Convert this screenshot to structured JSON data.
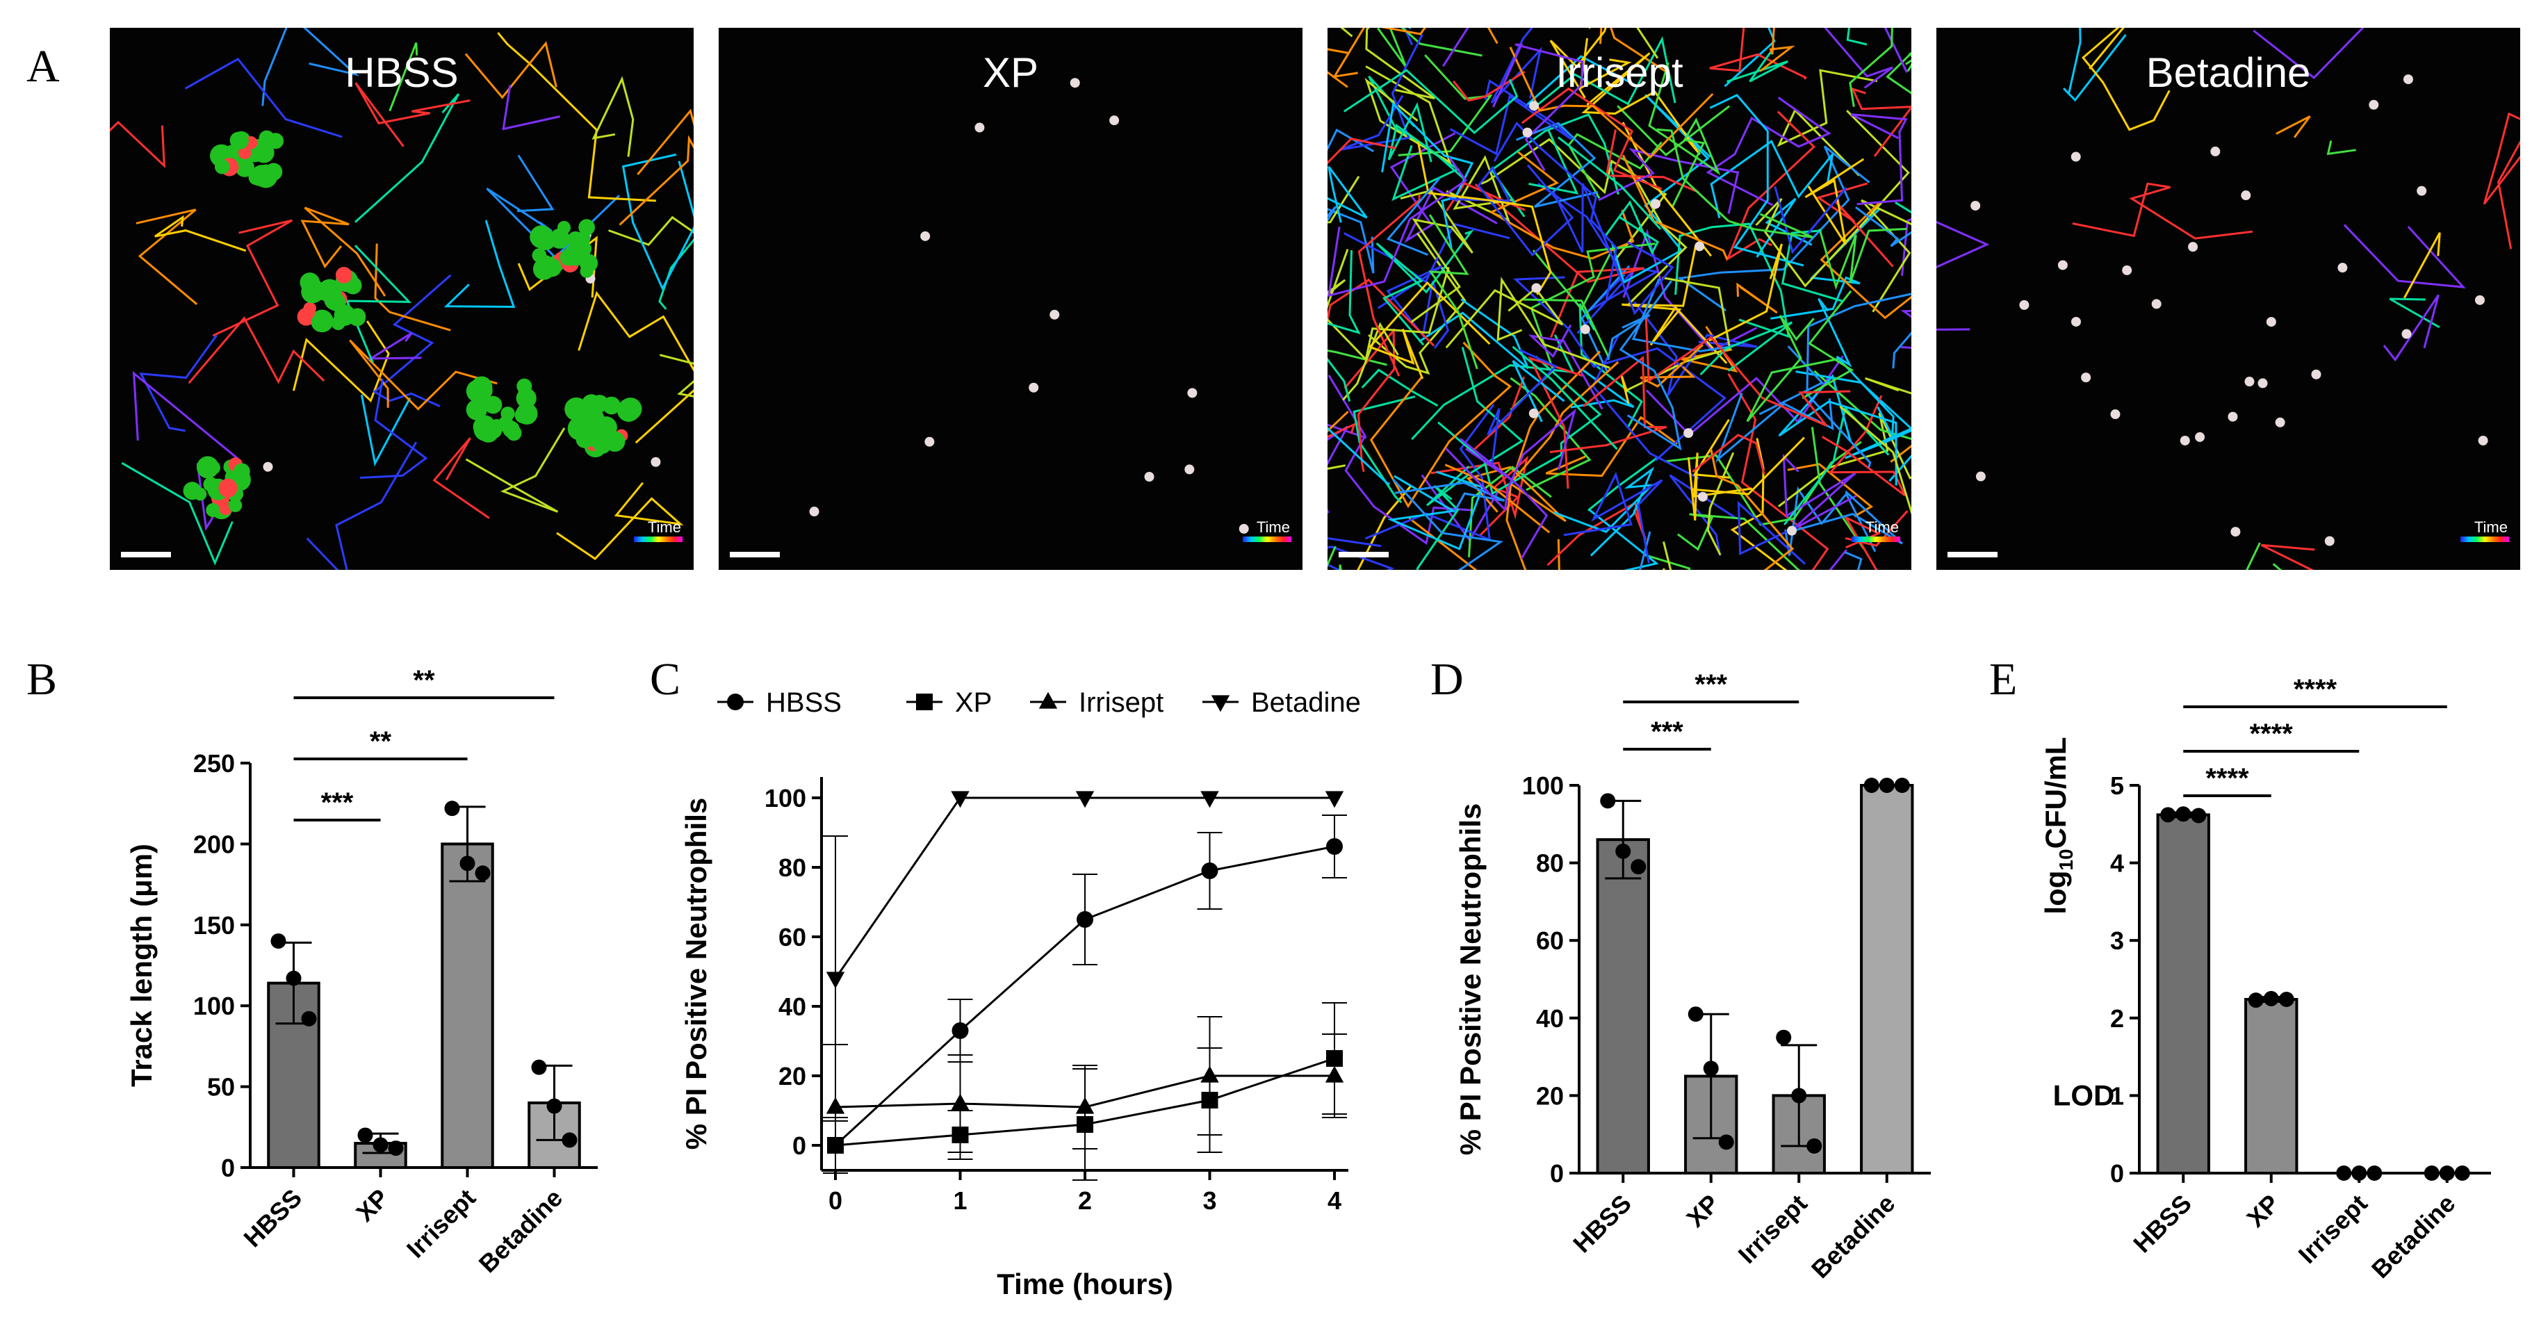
{
  "panel_letters": {
    "A": "A",
    "B": "B",
    "C": "C",
    "D": "D",
    "E": "E"
  },
  "micrographs": {
    "time_label": "Time",
    "panels": [
      {
        "title": "HBSS"
      },
      {
        "title": "XP"
      },
      {
        "title": "Irrisept"
      },
      {
        "title": "Betadine"
      }
    ]
  },
  "colors": {
    "bar_dark": "#707070",
    "bar_mid": "#8c8c8c",
    "bar_light": "#a8a8a8",
    "micro_bg": "#030303"
  },
  "chart_data": [
    {
      "panel": "B",
      "type": "bar",
      "categories": [
        "HBSS",
        "XP",
        "Irrisept",
        "Betadine"
      ],
      "values": [
        114,
        15,
        200,
        40
      ],
      "errors": [
        25,
        6,
        23,
        23
      ],
      "points": [
        [
          140,
          117,
          92
        ],
        [
          20,
          14,
          12
        ],
        [
          222,
          188,
          182
        ],
        [
          62,
          38,
          17
        ]
      ],
      "ylabel": "Track length (μm)",
      "ylim": [
        0,
        250
      ],
      "yticks": [
        0,
        50,
        100,
        150,
        200,
        250
      ],
      "significance": [
        {
          "from": "HBSS",
          "to": "XP",
          "label": "***"
        },
        {
          "from": "HBSS",
          "to": "Irrisept",
          "label": "**"
        },
        {
          "from": "HBSS",
          "to": "Betadine",
          "label": "**"
        }
      ]
    },
    {
      "panel": "C",
      "type": "line",
      "x": [
        0,
        1,
        2,
        3,
        4
      ],
      "xlabel": "Time (hours)",
      "ylabel": "% PI Positive Neutrophils",
      "ylim": [
        0,
        100
      ],
      "yticks": [
        0,
        20,
        40,
        60,
        80,
        100
      ],
      "xticks": [
        0,
        1,
        2,
        3,
        4
      ],
      "series": [
        {
          "name": "HBSS",
          "marker": "circle",
          "values": [
            0,
            33,
            65,
            79,
            86
          ],
          "errors": [
            8,
            9,
            13,
            11,
            9
          ]
        },
        {
          "name": "XP",
          "marker": "square",
          "values": [
            0,
            3,
            6,
            13,
            25
          ],
          "errors": [
            8,
            7,
            16,
            15,
            16
          ]
        },
        {
          "name": "Irrisept",
          "marker": "triangle-up",
          "values": [
            11,
            12,
            11,
            20,
            20
          ],
          "errors": [
            18,
            14,
            12,
            17,
            12
          ]
        },
        {
          "name": "Betadine",
          "marker": "triangle-down",
          "values": [
            48,
            100,
            100,
            100,
            100
          ],
          "errors": [
            41,
            0,
            0,
            0,
            0
          ]
        }
      ],
      "legend": "top"
    },
    {
      "panel": "D",
      "type": "bar",
      "categories": [
        "HBSS",
        "XP",
        "Irrisept",
        "Betadine"
      ],
      "values": [
        86,
        25,
        20,
        100
      ],
      "errors": [
        10,
        16,
        13,
        0
      ],
      "points": [
        [
          96,
          83,
          79
        ],
        [
          41,
          27,
          8
        ],
        [
          35,
          20,
          7
        ],
        [
          100,
          100,
          100
        ]
      ],
      "ylabel": "% PI Positive Neutrophils",
      "ylim": [
        0,
        100
      ],
      "yticks": [
        0,
        20,
        40,
        60,
        80,
        100
      ],
      "significance": [
        {
          "from": "HBSS",
          "to": "XP",
          "label": "***"
        },
        {
          "from": "HBSS",
          "to": "Irrisept",
          "label": "***"
        }
      ]
    },
    {
      "panel": "E",
      "type": "bar",
      "categories": [
        "HBSS",
        "XP",
        "Irrisept",
        "Betadine"
      ],
      "values": [
        4.62,
        2.24,
        0,
        0
      ],
      "errors": [
        0.03,
        0.03,
        0,
        0
      ],
      "points": [
        [
          4.62,
          4.63,
          4.61
        ],
        [
          2.23,
          2.25,
          2.24
        ],
        [
          0,
          0,
          0
        ],
        [
          0,
          0,
          0
        ]
      ],
      "ylabel_base": "log",
      "ylabel_sub": "10",
      "ylabel_rest": "CFU/mL",
      "ylim": [
        0,
        5
      ],
      "yticks": [
        0,
        1,
        2,
        3,
        4,
        5
      ],
      "lod_label": "LOD",
      "significance": [
        {
          "from": "HBSS",
          "to": "XP",
          "label": "****"
        },
        {
          "from": "HBSS",
          "to": "Irrisept",
          "label": "****"
        },
        {
          "from": "HBSS",
          "to": "Betadine",
          "label": "****"
        }
      ]
    }
  ]
}
